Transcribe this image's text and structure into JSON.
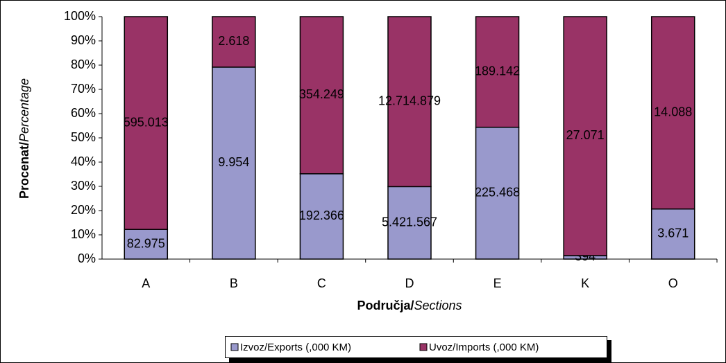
{
  "chart_data": {
    "type": "bar",
    "stacking": "percent",
    "y_title": [
      "Procenat/",
      "Percentage"
    ],
    "x_title": [
      "Područja/",
      "Sections"
    ],
    "categories": [
      "A",
      "B",
      "C",
      "D",
      "E",
      "K",
      "O"
    ],
    "series": [
      {
        "name": "Izvoz/Exports (,000 KM)",
        "color": "#9999cc",
        "values": [
          82975,
          9954,
          192366,
          5421567,
          225468,
          394,
          3671
        ],
        "value_labels": [
          "82.975",
          "9.954",
          "192.366",
          "5.421.567",
          "225.468",
          "394",
          "3.671"
        ]
      },
      {
        "name": "Uvoz/Imports (,000 KM)",
        "color": "#993366",
        "values": [
          595013,
          2618,
          354249,
          12714879,
          189142,
          27071,
          14088
        ],
        "value_labels": [
          "595.013",
          "2.618",
          "354.249",
          "12.714.879",
          "189.142",
          "27.071",
          "14.088"
        ]
      }
    ],
    "ylim": [
      0,
      100
    ],
    "yticks": [
      {
        "value": 0,
        "label": "0%"
      },
      {
        "value": 10,
        "label": "10%"
      },
      {
        "value": 20,
        "label": "20%"
      },
      {
        "value": 30,
        "label": "30%"
      },
      {
        "value": 40,
        "label": "40%"
      },
      {
        "value": 50,
        "label": "50%"
      },
      {
        "value": 60,
        "label": "60%"
      },
      {
        "value": 70,
        "label": "70%"
      },
      {
        "value": 80,
        "label": "80%"
      },
      {
        "value": 90,
        "label": "90%"
      },
      {
        "value": 100,
        "label": "100%"
      }
    ],
    "grid": false
  }
}
